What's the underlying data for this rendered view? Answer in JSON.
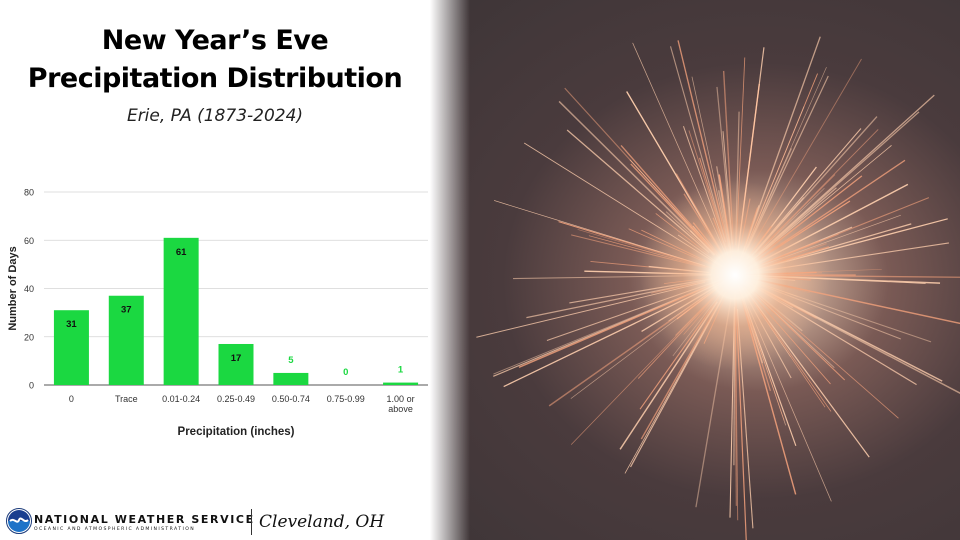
{
  "header": {
    "title_line1": "New Year’s Eve",
    "title_line2": "Precipitation Distribution",
    "subtitle": "Erie, PA (1873-2024)"
  },
  "chart_data": {
    "type": "bar",
    "categories": [
      "0",
      "Trace",
      "0.01-0.24",
      "0.25-0.49",
      "0.50-0.74",
      "0.75-0.99",
      "1.00 or above"
    ],
    "values": [
      31,
      37,
      61,
      17,
      5,
      0,
      1
    ],
    "xlabel": "Precipitation (inches)",
    "ylabel": "Number of Days",
    "ylim": [
      0,
      80
    ],
    "yticks": [
      0,
      20,
      40,
      60,
      80
    ],
    "grid": true,
    "bar_color": "#1bd841",
    "inside_label_color": "#111111",
    "outside_label_color": "#1bd841"
  },
  "footer": {
    "agency": "NATIONAL WEATHER SERVICE",
    "agency_sub": "OCEANIC AND ATMOSPHERIC ADMINISTRATION",
    "office": "Cleveland, OH"
  },
  "photo": {
    "subject_icon": "sparkler-photo"
  }
}
